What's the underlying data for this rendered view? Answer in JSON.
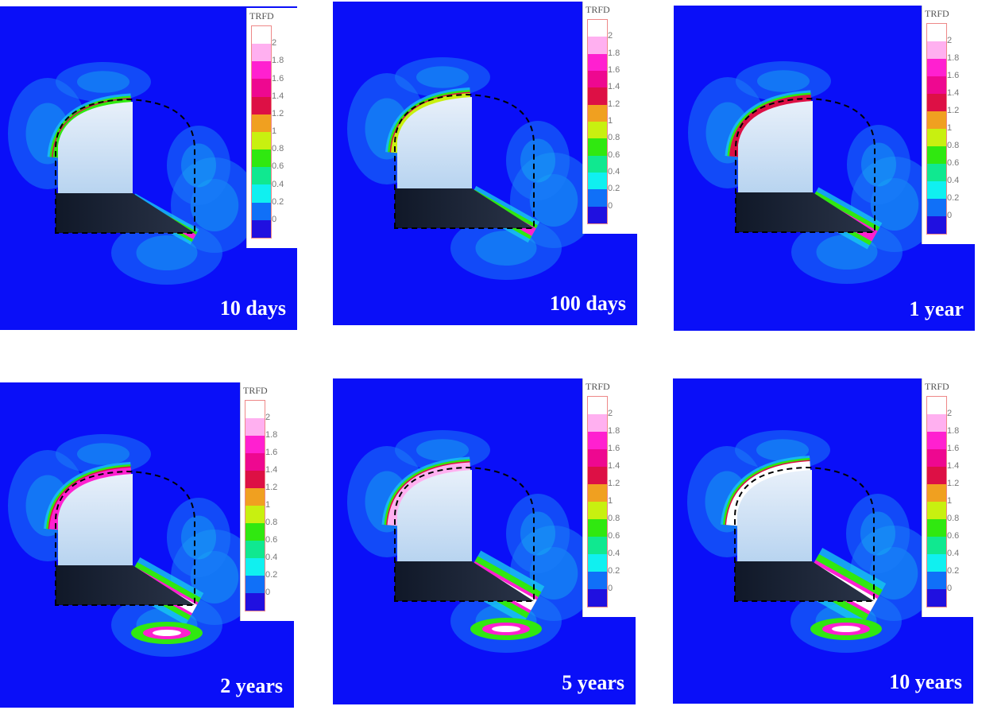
{
  "legend": {
    "title": "TRFD",
    "ticks": [
      "2",
      "1.8",
      "1.6",
      "1.4",
      "1.2",
      "1",
      "0.8",
      "0.6",
      "0.4",
      "0.2",
      "0"
    ],
    "colors": [
      "#ffffff",
      "#ffb0f0",
      "#ff20d0",
      "#ee0890",
      "#dd1045",
      "#f0a020",
      "#c8f010",
      "#30e810",
      "#10e890",
      "#10f0f0",
      "#1070f8",
      "#2010e0"
    ]
  },
  "panels": [
    {
      "label": "10 days",
      "level": 1
    },
    {
      "label": "100 days",
      "level": 2
    },
    {
      "label": "1 year",
      "level": 3
    },
    {
      "label": "2 years",
      "level": 4
    },
    {
      "label": "5 years",
      "level": 5
    },
    {
      "label": "10 years",
      "level": 6
    }
  ]
}
